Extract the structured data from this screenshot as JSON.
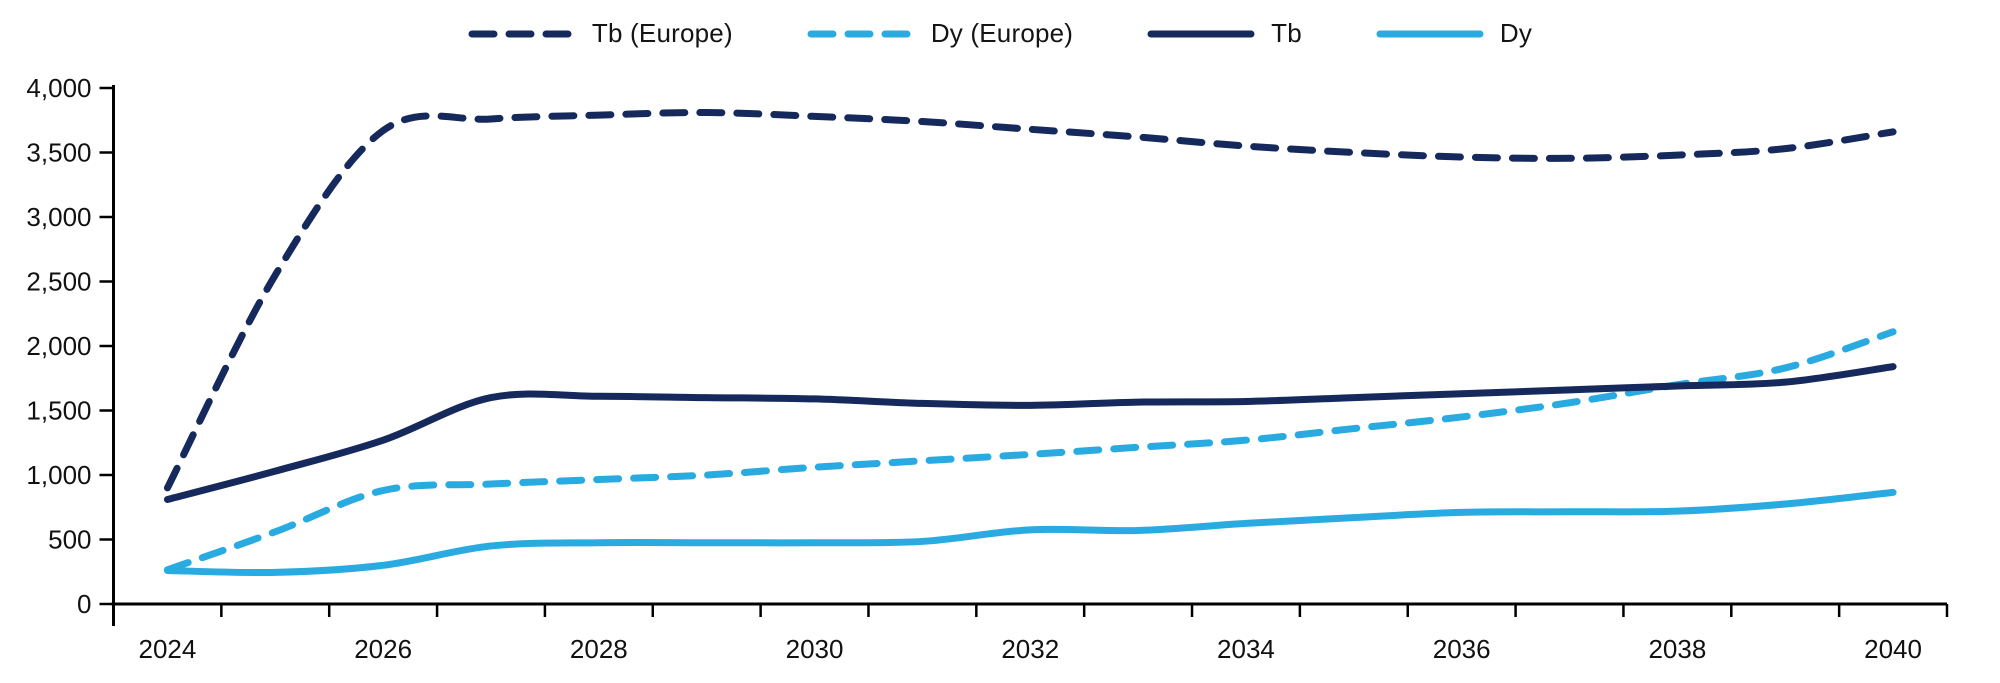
{
  "chart": {
    "background": "#ffffff",
    "text_color": "#111111",
    "axis_color": "#000000",
    "y_axis": {
      "min": 0,
      "max": 4000,
      "step": 500,
      "tick_labels": [
        "4,000",
        "3,500",
        "3,000",
        "2,500",
        "2,000",
        "1,500",
        "1,000",
        "500",
        "0"
      ]
    },
    "x_axis": {
      "tick_labels": [
        "2024",
        "2026",
        "2028",
        "2030",
        "2032",
        "2034",
        "2036",
        "2038",
        "2040"
      ]
    }
  },
  "chart_data": {
    "type": "line",
    "title": "",
    "xlabel": "",
    "ylabel": "",
    "x": [
      2024,
      2025,
      2026,
      2027,
      2028,
      2029,
      2030,
      2031,
      2032,
      2033,
      2034,
      2035,
      2036,
      2037,
      2038,
      2039,
      2040
    ],
    "ylim": [
      0,
      4000
    ],
    "grid": false,
    "legend_position": "top",
    "series": [
      {
        "name": "Tb (Europe)",
        "color": "#16295C",
        "style": "dashed",
        "values": [
          900,
          2550,
          3670,
          3760,
          3790,
          3810,
          3780,
          3740,
          3680,
          3620,
          3550,
          3500,
          3465,
          3455,
          3480,
          3530,
          3660
        ]
      },
      {
        "name": "Dy (Europe)",
        "color": "#29ABE2",
        "style": "dashed",
        "values": [
          265,
          560,
          880,
          930,
          965,
          1000,
          1060,
          1110,
          1160,
          1215,
          1270,
          1360,
          1450,
          1560,
          1700,
          1830,
          2110
        ]
      },
      {
        "name": "Tb",
        "color": "#16295C",
        "style": "solid",
        "values": [
          810,
          1030,
          1270,
          1600,
          1610,
          1600,
          1590,
          1555,
          1540,
          1565,
          1570,
          1600,
          1630,
          1660,
          1690,
          1720,
          1840
        ]
      },
      {
        "name": "Dy",
        "color": "#29ABE2",
        "style": "solid",
        "values": [
          260,
          245,
          300,
          450,
          475,
          475,
          475,
          485,
          575,
          570,
          625,
          670,
          710,
          715,
          720,
          775,
          865
        ]
      }
    ]
  }
}
